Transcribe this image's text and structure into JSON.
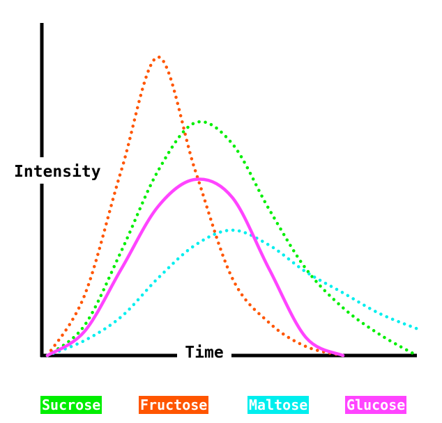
{
  "chart_data": {
    "type": "line",
    "xlabel": "Time",
    "ylabel": "Intensity",
    "xlim": [
      0,
      100
    ],
    "ylim": [
      0,
      100
    ],
    "grid": false,
    "legend_position": "bottom",
    "x": [
      0,
      10,
      20,
      30,
      40,
      50,
      60,
      70,
      80,
      90,
      100
    ],
    "series": [
      {
        "name": "Sucrose",
        "color": "#00ee00",
        "style": "dotted",
        "values": [
          0,
          10,
          35,
          62,
          78,
          71,
          49,
          29,
          16,
          7,
          0
        ]
      },
      {
        "name": "Fructose",
        "color": "#ff5500",
        "style": "dotted",
        "values": [
          0,
          20,
          62,
          100,
          62,
          26,
          11,
          3,
          0,
          null,
          null
        ]
      },
      {
        "name": "Maltose",
        "color": "#00eeee",
        "style": "dotted",
        "values": [
          0,
          5,
          13,
          26,
          37,
          42,
          37,
          28,
          21,
          14,
          9
        ]
      },
      {
        "name": "Glucose",
        "color": "#ff44ff",
        "style": "solid",
        "values": [
          0,
          8,
          29,
          50,
          59,
          53,
          29,
          6,
          0,
          null,
          null
        ]
      }
    ]
  }
}
